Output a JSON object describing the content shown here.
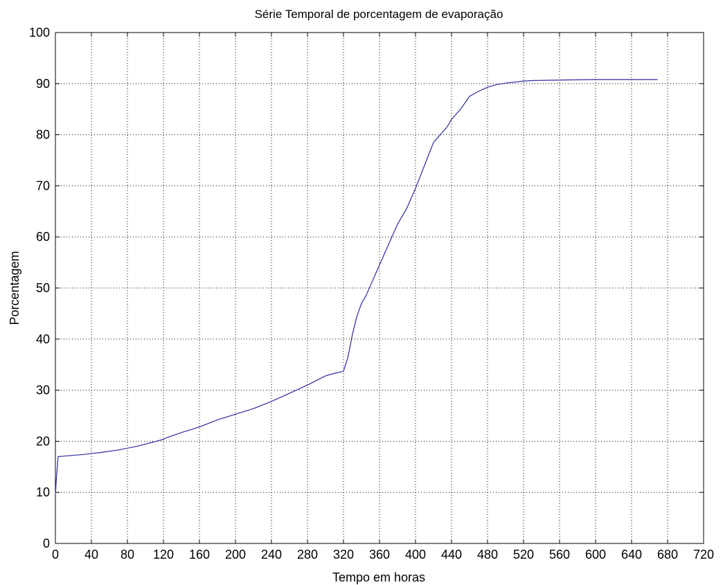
{
  "chart_data": {
    "type": "line",
    "title": "Série Temporal de porcentagem de evaporação",
    "xlabel": "Tempo em horas",
    "ylabel": "Porcentagem",
    "xlim": [
      0,
      720
    ],
    "ylim": [
      0,
      100
    ],
    "xticks": [
      0,
      40,
      80,
      120,
      160,
      200,
      240,
      280,
      320,
      360,
      400,
      440,
      480,
      520,
      560,
      600,
      640,
      680,
      720
    ],
    "yticks": [
      0,
      10,
      20,
      30,
      40,
      50,
      60,
      70,
      80,
      90,
      100
    ],
    "grid": true,
    "line_color": "#2b2ba0",
    "series": [
      {
        "x": [
          0,
          1,
          3,
          10,
          30,
          50,
          70,
          90,
          110,
          120,
          125,
          140,
          160,
          180,
          200,
          220,
          240,
          260,
          280,
          300,
          310,
          320,
          325,
          330,
          335,
          340,
          345,
          350,
          360,
          370,
          380,
          390,
          400,
          410,
          420,
          430,
          435,
          440,
          450,
          460,
          470,
          480,
          490,
          500,
          520,
          530,
          560,
          600,
          640,
          669
        ],
        "y": [
          9.5,
          12.5,
          17.0,
          17.1,
          17.4,
          17.8,
          18.3,
          19.0,
          19.9,
          20.4,
          20.8,
          21.7,
          22.8,
          24.2,
          25.3,
          26.4,
          27.8,
          29.4,
          31.0,
          32.8,
          33.3,
          33.7,
          36.5,
          41.0,
          44.5,
          47.0,
          48.5,
          50.5,
          54.5,
          58.5,
          62.5,
          65.5,
          69.5,
          74.0,
          78.5,
          80.5,
          81.5,
          83.0,
          85.0,
          87.5,
          88.5,
          89.3,
          89.8,
          90.1,
          90.5,
          90.6,
          90.7,
          90.8,
          90.8,
          90.8
        ]
      }
    ]
  }
}
